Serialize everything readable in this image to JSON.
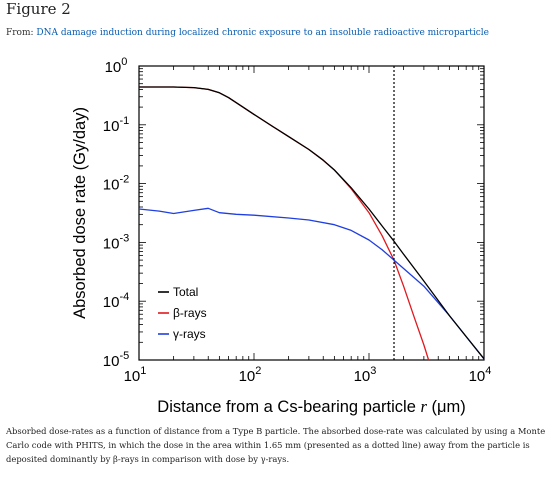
{
  "figure_label": "Figure 2",
  "source_prefix": "From:",
  "source_link": "DNA damage induction during localized chronic exposure to an insoluble radioactive microparticle",
  "caption": "Absorbed dose-rates as a function of distance from a Type B particle. The absorbed dose-rate was calculated by using a Monte Carlo code with PHITS, in which the dose in the area within 1.65 mm (presented as a dotted line) away from the particle is deposited dominantly by β-rays in comparison with dose by γ-rays.",
  "colors": {
    "total": "#000000",
    "beta": "#e0191e",
    "gamma": "#1f3fe0",
    "link": "#0a5eb0"
  },
  "chart_data": {
    "type": "line",
    "xscale": "log",
    "yscale": "log",
    "xlim": [
      10,
      10000
    ],
    "ylim": [
      1e-05,
      1
    ],
    "xlabel_main": "Distance from a Cs-bearing particle ",
    "xlabel_var": "r",
    "xlabel_unit": " (μm)",
    "ylabel": "Absorbed dose rate (Gy/day)",
    "x_tick_labels": [
      {
        "value": 10,
        "base": "10",
        "exp": "1"
      },
      {
        "value": 100,
        "base": "10",
        "exp": "2"
      },
      {
        "value": 1000,
        "base": "10",
        "exp": "3"
      },
      {
        "value": 10000,
        "base": "10",
        "exp": "4"
      }
    ],
    "y_tick_labels": [
      {
        "value": 1,
        "base": "10",
        "exp": "0"
      },
      {
        "value": 0.1,
        "base": "10",
        "exp": "-1"
      },
      {
        "value": 0.01,
        "base": "10",
        "exp": "-2"
      },
      {
        "value": 0.001,
        "base": "10",
        "exp": "-3"
      },
      {
        "value": 0.0001,
        "base": "10",
        "exp": "-4"
      },
      {
        "value": 1e-05,
        "base": "10",
        "exp": "-5"
      }
    ],
    "dotted_line_x": 1650,
    "legend": [
      "Total",
      "β-rays",
      "γ-rays"
    ],
    "series": [
      {
        "name": "Total",
        "x": [
          10,
          20,
          30,
          40,
          50,
          60,
          80,
          100,
          150,
          200,
          300,
          400,
          500,
          700,
          1000,
          1300,
          1650,
          2000,
          3000,
          5000,
          7000,
          10000
        ],
        "y": [
          0.44,
          0.44,
          0.43,
          0.4,
          0.35,
          0.29,
          0.2,
          0.15,
          0.09,
          0.063,
          0.038,
          0.025,
          0.017,
          0.0085,
          0.0037,
          0.0019,
          0.00105,
          0.00063,
          0.00022,
          5.7e-05,
          2.5e-05,
          1.05e-05
        ]
      },
      {
        "name": "β-rays",
        "x": [
          10,
          20,
          30,
          40,
          50,
          60,
          80,
          100,
          150,
          200,
          300,
          400,
          500,
          700,
          1000,
          1300,
          1650,
          2000,
          2500,
          3000,
          3300
        ],
        "y": [
          0.44,
          0.44,
          0.43,
          0.4,
          0.35,
          0.29,
          0.2,
          0.15,
          0.09,
          0.063,
          0.038,
          0.025,
          0.017,
          0.0082,
          0.0032,
          0.0013,
          0.0005,
          0.00018,
          5e-05,
          1.8e-05,
          1e-05
        ]
      },
      {
        "name": "γ-rays",
        "x": [
          10,
          15,
          20,
          30,
          40,
          50,
          70,
          100,
          200,
          300,
          500,
          700,
          1000,
          1300,
          1650,
          2000,
          3000,
          5000,
          7000,
          10000
        ],
        "y": [
          0.0037,
          0.0034,
          0.0031,
          0.0035,
          0.0038,
          0.0032,
          0.003,
          0.0029,
          0.0026,
          0.0024,
          0.002,
          0.0016,
          0.0011,
          0.00075,
          0.0005,
          0.00036,
          0.00018,
          5.7e-05,
          2.5e-05,
          1.05e-05
        ]
      }
    ]
  }
}
